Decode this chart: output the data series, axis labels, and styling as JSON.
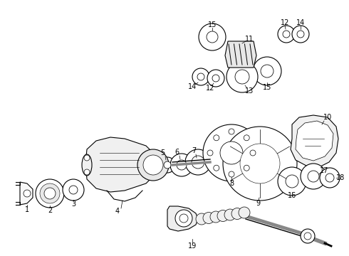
{
  "background_color": "#ffffff",
  "line_color": "#000000",
  "fig_width": 4.9,
  "fig_height": 3.6,
  "dpi": 100,
  "components": {
    "label_fontsize": 7.0,
    "lw": 0.8
  }
}
